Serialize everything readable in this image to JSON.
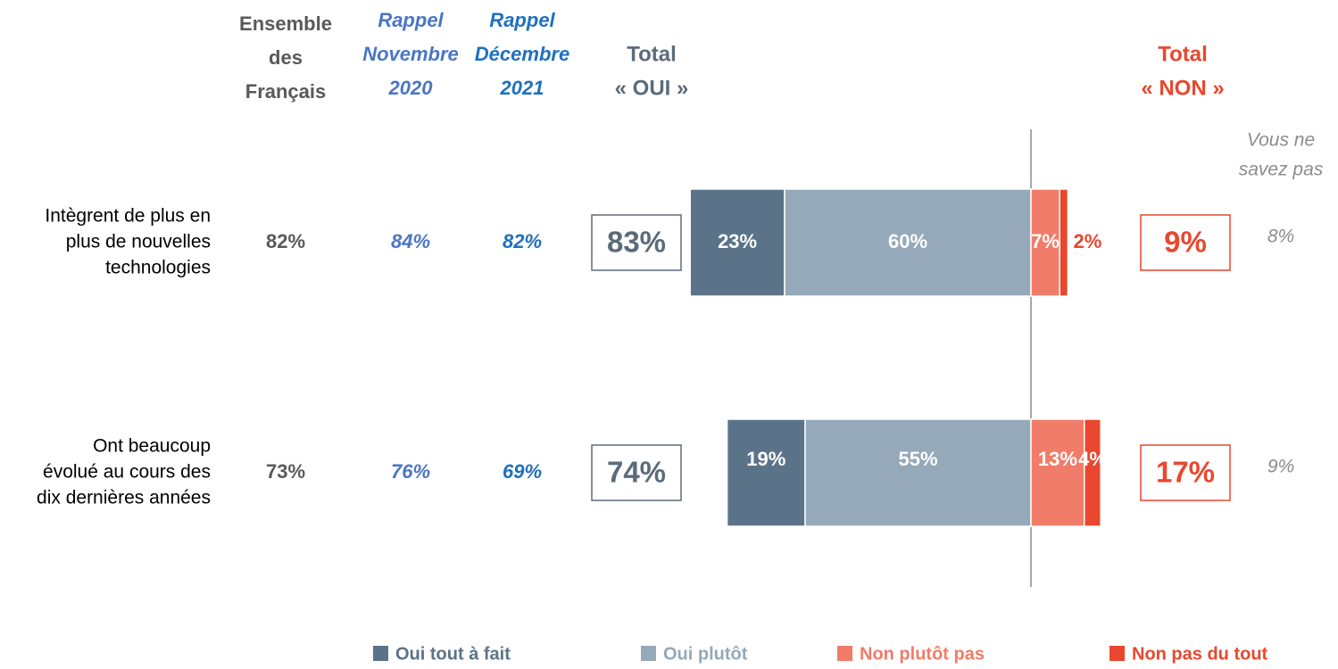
{
  "chart_data": {
    "type": "diverging_bar",
    "categories": [
      [
        "Intègrent de plus en",
        "plus de nouvelles",
        "technologies"
      ],
      [
        "Ont beaucoup",
        "évolué au cours des",
        "dix dernières années"
      ]
    ],
    "series": [
      {
        "name": "Oui tout à fait",
        "color": "#5b7389",
        "side": "yes",
        "values": [
          23,
          19
        ],
        "value_labels": [
          "23%",
          "19%"
        ]
      },
      {
        "name": "Oui plutôt",
        "color": "#95a9ba",
        "side": "yes",
        "values": [
          60,
          55
        ],
        "value_labels": [
          "60%",
          "55%"
        ]
      },
      {
        "name": "Non plutôt pas",
        "color": "#f07c69",
        "side": "no",
        "values": [
          7,
          13
        ],
        "value_labels": [
          "7%",
          "13%"
        ]
      },
      {
        "name": "Non pas du tout",
        "color": "#e9472e",
        "side": "no",
        "values": [
          2,
          4
        ],
        "value_labels": [
          "2%",
          "4%"
        ]
      }
    ],
    "columns": [
      {
        "header": [
          "Ensemble",
          "des",
          "Français"
        ],
        "color": "#595959",
        "italic": false,
        "values": [
          82,
          73
        ],
        "value_labels": [
          "82%",
          "73%"
        ]
      },
      {
        "header": [
          "Rappel",
          "Novembre",
          "2020"
        ],
        "color": "#4a76c4",
        "italic": true,
        "values": [
          84,
          76
        ],
        "value_labels": [
          "84%",
          "76%"
        ]
      },
      {
        "header": [
          "Rappel",
          "Décembre",
          "2021"
        ],
        "color": "#1f70be",
        "italic": true,
        "values": [
          82,
          69
        ],
        "value_labels": [
          "82%",
          "69%"
        ]
      }
    ],
    "total_yes": {
      "header": [
        "Total",
        "« OUI »"
      ],
      "color": "#5b6b7a",
      "values": [
        83,
        74
      ],
      "value_labels": [
        "83%",
        "74%"
      ]
    },
    "total_no": {
      "header": [
        "Total",
        "« NON »"
      ],
      "color": "#e9472e",
      "values": [
        9,
        17
      ],
      "value_labels": [
        "9%",
        "17%"
      ]
    },
    "dont_know": {
      "header": [
        "Vous ne",
        "savez pas"
      ],
      "color": "#8c8c8c",
      "values": [
        8,
        9
      ],
      "value_labels": [
        "8%",
        "9%"
      ]
    }
  }
}
